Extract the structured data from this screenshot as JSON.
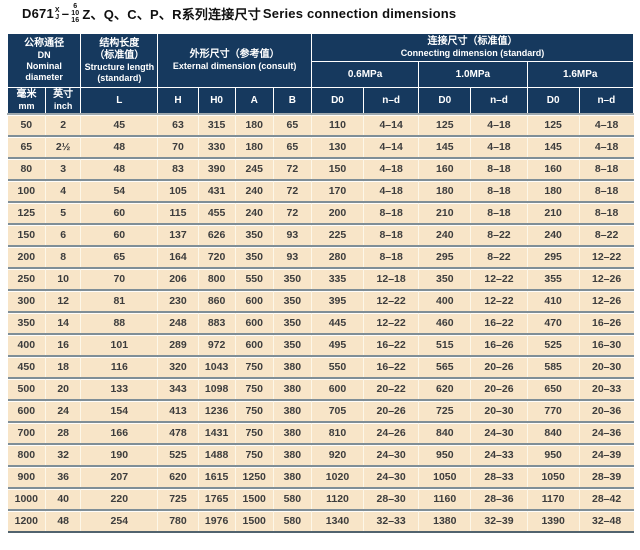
{
  "colors": {
    "header_bg": "#16395e",
    "body_bg": "#f8e5c8",
    "row_separator": "#7f8e97",
    "header_text": "#ffffff",
    "body_text": "#3d3d3d"
  },
  "title": {
    "model": "D671",
    "sup": "X",
    "sub": "J",
    "dash": "–",
    "stack": [
      "6",
      "10",
      "16"
    ],
    "series_cn": "Z、Q、C、P、R系列连接尺寸",
    "series_en": "Series connection dimensions"
  },
  "table": {
    "header": {
      "nominal_diameter": {
        "cn": "公称通径",
        "code": "DN",
        "en1": "Nominal",
        "en2": "diameter"
      },
      "structure_length": {
        "cn": "结构长度",
        "cn2": "（标准值）",
        "en1": "Structure length",
        "en2": "(standard)"
      },
      "external_dimension": {
        "cn": "外形尺寸（参考值）",
        "en": "External dimension (consult)"
      },
      "connecting_dimension": {
        "cn": "连接尺寸（标准值）",
        "en": "Connecting dimension (standard)"
      },
      "pressures": [
        "0.6MPa",
        "1.0MPa",
        "1.6MPa"
      ],
      "mm": {
        "cn": "毫米",
        "en": "mm"
      },
      "inch": {
        "cn": "英寸",
        "en": "inch"
      },
      "L": "L",
      "H": "H",
      "H0": "H0",
      "A": "A",
      "B": "B",
      "D0": "D0",
      "nd": "n–d"
    },
    "rows": [
      [
        "50",
        "2",
        "45",
        "63",
        "315",
        "180",
        "65",
        "110",
        "4–14",
        "125",
        "4–18",
        "125",
        "4–18"
      ],
      [
        "65",
        "2½",
        "48",
        "70",
        "330",
        "180",
        "65",
        "130",
        "4–14",
        "145",
        "4–18",
        "145",
        "4–18"
      ],
      [
        "80",
        "3",
        "48",
        "83",
        "390",
        "245",
        "72",
        "150",
        "4–18",
        "160",
        "8–18",
        "160",
        "8–18"
      ],
      [
        "100",
        "4",
        "54",
        "105",
        "431",
        "240",
        "72",
        "170",
        "4–18",
        "180",
        "8–18",
        "180",
        "8–18"
      ],
      [
        "125",
        "5",
        "60",
        "115",
        "455",
        "240",
        "72",
        "200",
        "8–18",
        "210",
        "8–18",
        "210",
        "8–18"
      ],
      [
        "150",
        "6",
        "60",
        "137",
        "626",
        "350",
        "93",
        "225",
        "8–18",
        "240",
        "8–22",
        "240",
        "8–22"
      ],
      [
        "200",
        "8",
        "65",
        "164",
        "720",
        "350",
        "93",
        "280",
        "8–18",
        "295",
        "8–22",
        "295",
        "12–22"
      ],
      [
        "250",
        "10",
        "70",
        "206",
        "800",
        "550",
        "350",
        "335",
        "12–18",
        "350",
        "12–22",
        "355",
        "12–26"
      ],
      [
        "300",
        "12",
        "81",
        "230",
        "860",
        "600",
        "350",
        "395",
        "12–22",
        "400",
        "12–22",
        "410",
        "12–26"
      ],
      [
        "350",
        "14",
        "88",
        "248",
        "883",
        "600",
        "350",
        "445",
        "12–22",
        "460",
        "16–22",
        "470",
        "16–26"
      ],
      [
        "400",
        "16",
        "101",
        "289",
        "972",
        "600",
        "350",
        "495",
        "16–22",
        "515",
        "16–26",
        "525",
        "16–30"
      ],
      [
        "450",
        "18",
        "116",
        "320",
        "1043",
        "750",
        "380",
        "550",
        "16–22",
        "565",
        "20–26",
        "585",
        "20–30"
      ],
      [
        "500",
        "20",
        "133",
        "343",
        "1098",
        "750",
        "380",
        "600",
        "20–22",
        "620",
        "20–26",
        "650",
        "20–33"
      ],
      [
        "600",
        "24",
        "154",
        "413",
        "1236",
        "750",
        "380",
        "705",
        "20–26",
        "725",
        "20–30",
        "770",
        "20–36"
      ],
      [
        "700",
        "28",
        "166",
        "478",
        "1431",
        "750",
        "380",
        "810",
        "24–26",
        "840",
        "24–30",
        "840",
        "24–36"
      ],
      [
        "800",
        "32",
        "190",
        "525",
        "1488",
        "750",
        "380",
        "920",
        "24–30",
        "950",
        "24–33",
        "950",
        "24–39"
      ],
      [
        "900",
        "36",
        "207",
        "620",
        "1615",
        "1250",
        "380",
        "1020",
        "24–30",
        "1050",
        "28–33",
        "1050",
        "28–39"
      ],
      [
        "1000",
        "40",
        "220",
        "725",
        "1765",
        "1500",
        "580",
        "1120",
        "28–30",
        "1160",
        "28–36",
        "1170",
        "28–42"
      ],
      [
        "1200",
        "48",
        "254",
        "780",
        "1976",
        "1500",
        "580",
        "1340",
        "32–33",
        "1380",
        "32–39",
        "1390",
        "32–48"
      ]
    ]
  }
}
